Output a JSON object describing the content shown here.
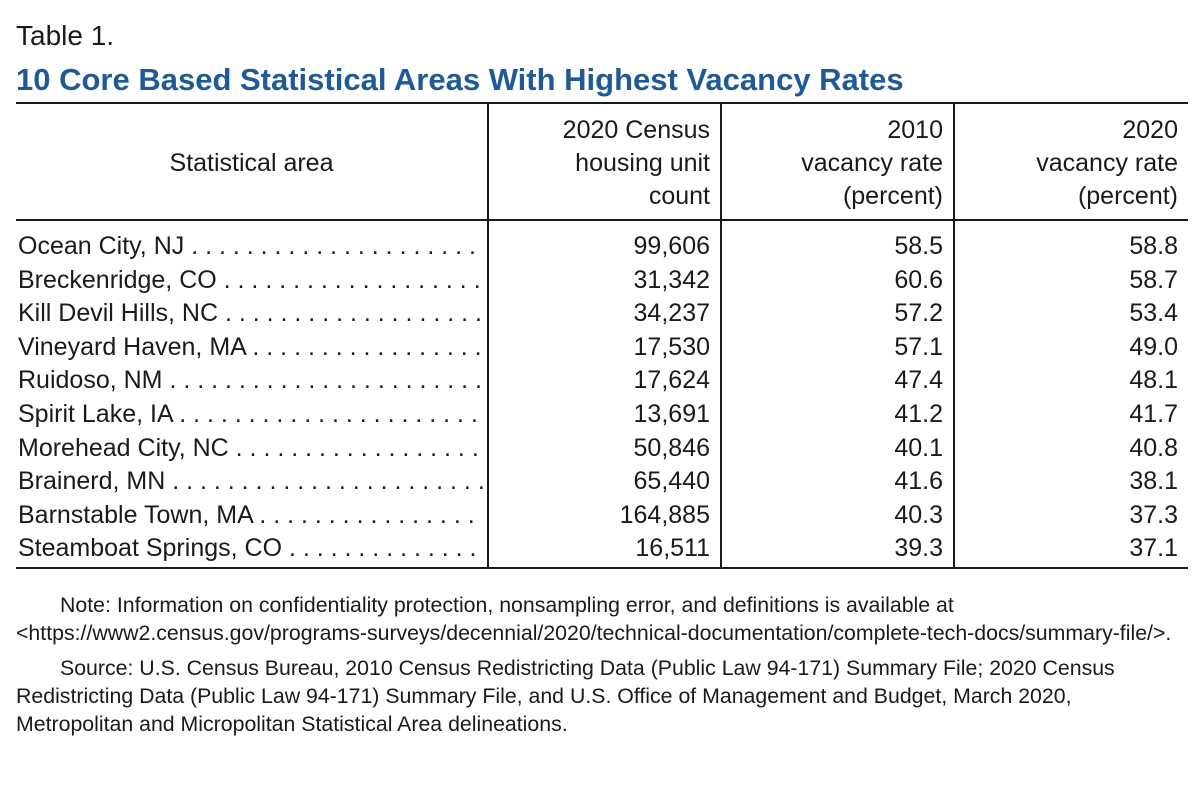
{
  "table_label": "Table 1.",
  "title": "10 Core Based Statistical Areas With Highest Vacancy Rates",
  "columns": [
    "Statistical area",
    "2020 Census\nhousing unit\ncount",
    "2010\nvacancy rate\n(percent)",
    "2020\nvacancy rate\n(percent)"
  ],
  "rows": [
    {
      "area": "Ocean City, NJ",
      "housing_units": "99,606",
      "vacancy_2010": "58.5",
      "vacancy_2020": "58.8"
    },
    {
      "area": "Breckenridge, CO",
      "housing_units": "31,342",
      "vacancy_2010": "60.6",
      "vacancy_2020": "58.7"
    },
    {
      "area": "Kill Devil Hills, NC",
      "housing_units": "34,237",
      "vacancy_2010": "57.2",
      "vacancy_2020": "53.4"
    },
    {
      "area": "Vineyard Haven, MA",
      "housing_units": "17,530",
      "vacancy_2010": "57.1",
      "vacancy_2020": "49.0"
    },
    {
      "area": "Ruidoso, NM",
      "housing_units": "17,624",
      "vacancy_2010": "47.4",
      "vacancy_2020": "48.1"
    },
    {
      "area": "Spirit Lake, IA",
      "housing_units": "13,691",
      "vacancy_2010": "41.2",
      "vacancy_2020": "41.7"
    },
    {
      "area": "Morehead City, NC",
      "housing_units": "50,846",
      "vacancy_2010": "40.1",
      "vacancy_2020": "40.8"
    },
    {
      "area": "Brainerd, MN",
      "housing_units": "65,440",
      "vacancy_2010": "41.6",
      "vacancy_2020": "38.1"
    },
    {
      "area": "Barnstable Town, MA",
      "housing_units": "164,885",
      "vacancy_2010": "40.3",
      "vacancy_2020": "37.3"
    },
    {
      "area": "Steamboat Springs, CO",
      "housing_units": "16,511",
      "vacancy_2010": "39.3",
      "vacancy_2020": "37.1"
    }
  ],
  "note": "Note: Information on confidentiality protection, nonsampling error, and definitions is available at <https://www2.census.gov/programs-surveys/decennial/2020/technical-documentation/complete-tech-docs/summary-file/>.",
  "source": "Source: U.S. Census Bureau, 2010 Census Redistricting Data (Public Law 94-171) Summary File; 2020 Census Redistricting Data (Public Law 94-171) Summary File, and U.S. Office of Management and Budget, March 2020, Metropolitan and Micropolitan Statistical Area delineations.",
  "colors": {
    "title": "#1f5a96",
    "text": "#1a1a1a",
    "background": "#ffffff"
  }
}
